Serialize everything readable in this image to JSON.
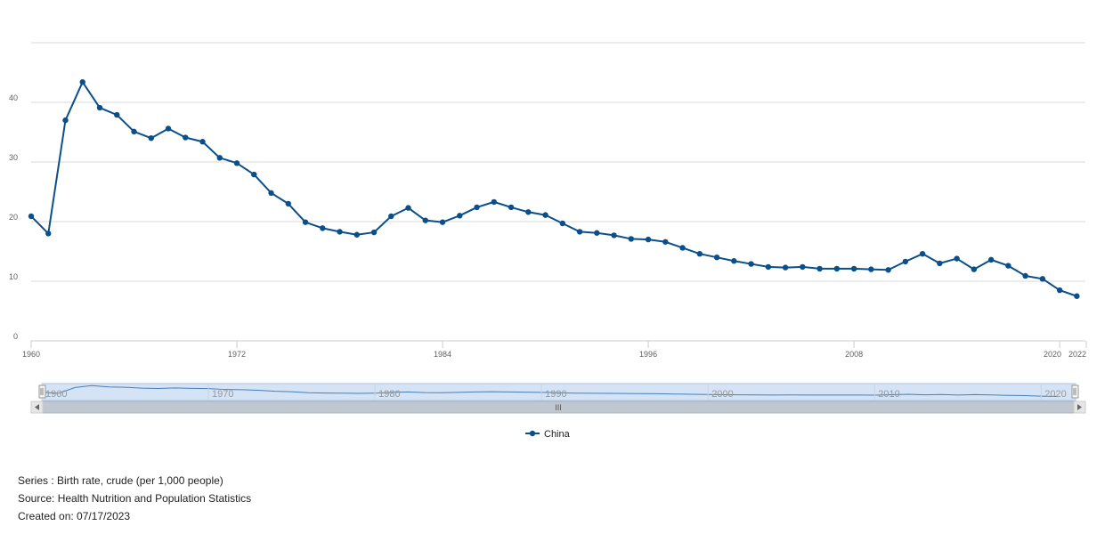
{
  "chart_data": {
    "type": "line",
    "series": [
      {
        "name": "China",
        "color": "#0b4f8a",
        "x": [
          1960,
          1961,
          1962,
          1963,
          1964,
          1965,
          1966,
          1967,
          1968,
          1969,
          1970,
          1971,
          1972,
          1973,
          1974,
          1975,
          1976,
          1977,
          1978,
          1979,
          1980,
          1981,
          1982,
          1983,
          1984,
          1985,
          1986,
          1987,
          1988,
          1989,
          1990,
          1991,
          1992,
          1993,
          1994,
          1995,
          1996,
          1997,
          1998,
          1999,
          2000,
          2001,
          2002,
          2003,
          2004,
          2005,
          2006,
          2007,
          2008,
          2009,
          2010,
          2011,
          2012,
          2013,
          2014,
          2015,
          2016,
          2017,
          2018,
          2019,
          2020,
          2021
        ],
        "values": [
          20.9,
          18.0,
          37.0,
          43.4,
          39.1,
          37.9,
          35.1,
          34.0,
          35.6,
          34.1,
          33.4,
          30.7,
          29.8,
          27.9,
          24.8,
          23.0,
          19.9,
          18.9,
          18.3,
          17.8,
          18.2,
          20.9,
          22.3,
          20.2,
          19.9,
          21.0,
          22.4,
          23.3,
          22.4,
          21.6,
          21.1,
          19.7,
          18.3,
          18.1,
          17.7,
          17.1,
          17.0,
          16.6,
          15.6,
          14.6,
          14.0,
          13.4,
          12.9,
          12.4,
          12.3,
          12.4,
          12.1,
          12.1,
          12.1,
          12.0,
          11.9,
          13.3,
          14.6,
          13.0,
          13.8,
          12.0,
          13.6,
          12.6,
          10.9,
          10.4,
          8.5,
          7.5
        ]
      }
    ],
    "x_ticks": [
      "1960",
      "1972",
      "1984",
      "1996",
      "2008",
      "2020",
      "2022"
    ],
    "y_ticks": [
      "0",
      "10",
      "20",
      "30",
      "40"
    ],
    "ylim": [
      0,
      50
    ],
    "xlim": [
      1960,
      2021.5
    ],
    "grid": true,
    "legend_position": "bottom-center",
    "navigator": {
      "labels": [
        "1960",
        "1970",
        "1980",
        "1990",
        "2000",
        "2010",
        "2020"
      ],
      "scrollbar_grip": "III"
    }
  },
  "footer": {
    "series": "Series : Birth rate, crude (per 1,000 people)",
    "source": "Source: Health Nutrition and Population Statistics",
    "created": "Created on: 07/17/2023"
  }
}
